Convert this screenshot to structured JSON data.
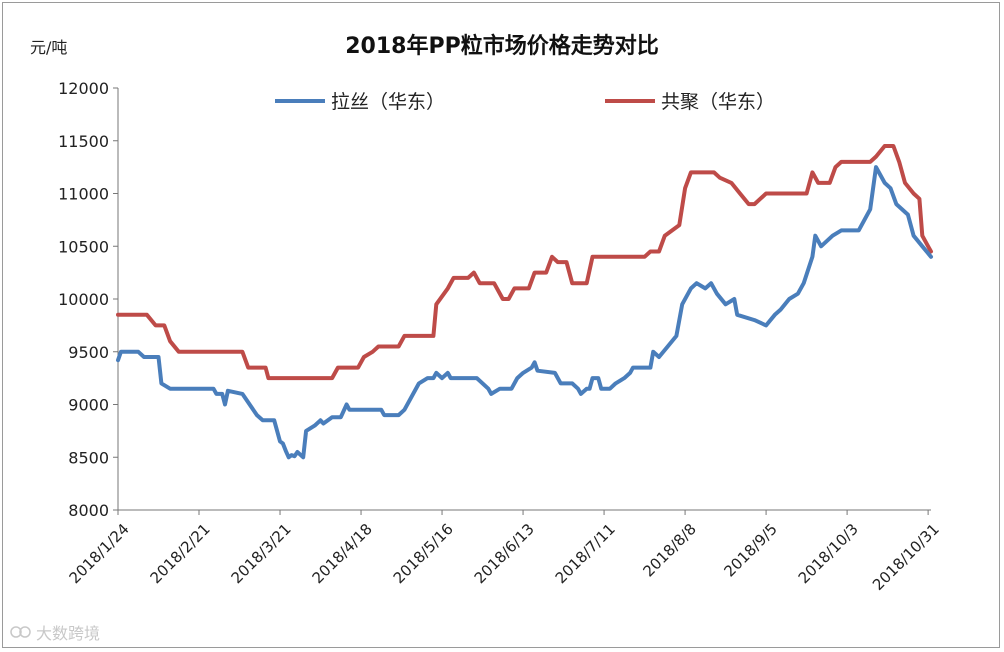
{
  "chart_data": {
    "type": "line",
    "title": "2018年PP粒市场价格走势对比",
    "ylabel": "元/吨",
    "ylim": [
      8000,
      12000
    ],
    "yticks": [
      8000,
      8500,
      9000,
      9500,
      10000,
      10500,
      11000,
      11500,
      12000
    ],
    "xlim": [
      "2018-01-24",
      "2018-11-01"
    ],
    "xticks": [
      "2018/1/24",
      "2018/2/21",
      "2018/3/21",
      "2018/4/18",
      "2018/5/16",
      "2018/6/13",
      "2018/7/11",
      "2018/8/8",
      "2018/9/5",
      "2018/10/3",
      "2018/10/31"
    ],
    "grid": false,
    "legend_position": "top",
    "series": [
      {
        "name": "拉丝（华东）",
        "color": "#4a7ebb",
        "points": [
          [
            "2018-01-24",
            9420
          ],
          [
            "2018-01-25",
            9500
          ],
          [
            "2018-01-31",
            9500
          ],
          [
            "2018-02-02",
            9450
          ],
          [
            "2018-02-07",
            9450
          ],
          [
            "2018-02-08",
            9200
          ],
          [
            "2018-02-11",
            9150
          ],
          [
            "2018-02-26",
            9150
          ],
          [
            "2018-02-27",
            9100
          ],
          [
            "2018-03-01",
            9100
          ],
          [
            "2018-03-02",
            9000
          ],
          [
            "2018-03-03",
            9130
          ],
          [
            "2018-03-08",
            9100
          ],
          [
            "2018-03-13",
            8900
          ],
          [
            "2018-03-15",
            8850
          ],
          [
            "2018-03-19",
            8850
          ],
          [
            "2018-03-21",
            8650
          ],
          [
            "2018-03-22",
            8630
          ],
          [
            "2018-03-23",
            8560
          ],
          [
            "2018-03-24",
            8500
          ],
          [
            "2018-03-25",
            8520
          ],
          [
            "2018-03-26",
            8510
          ],
          [
            "2018-03-27",
            8550
          ],
          [
            "2018-03-29",
            8500
          ],
          [
            "2018-03-30",
            8750
          ],
          [
            "2018-04-02",
            8800
          ],
          [
            "2018-04-04",
            8850
          ],
          [
            "2018-04-05",
            8820
          ],
          [
            "2018-04-08",
            8880
          ],
          [
            "2018-04-11",
            8880
          ],
          [
            "2018-04-13",
            9000
          ],
          [
            "2018-04-14",
            8950
          ],
          [
            "2018-04-25",
            8950
          ],
          [
            "2018-04-26",
            8900
          ],
          [
            "2018-05-01",
            8900
          ],
          [
            "2018-05-03",
            8950
          ],
          [
            "2018-05-08",
            9200
          ],
          [
            "2018-05-11",
            9250
          ],
          [
            "2018-05-13",
            9250
          ],
          [
            "2018-05-14",
            9300
          ],
          [
            "2018-05-16",
            9250
          ],
          [
            "2018-05-18",
            9300
          ],
          [
            "2018-05-19",
            9250
          ],
          [
            "2018-05-28",
            9250
          ],
          [
            "2018-06-01",
            9150
          ],
          [
            "2018-06-02",
            9100
          ],
          [
            "2018-06-05",
            9150
          ],
          [
            "2018-06-09",
            9150
          ],
          [
            "2018-06-11",
            9250
          ],
          [
            "2018-06-13",
            9300
          ],
          [
            "2018-06-16",
            9350
          ],
          [
            "2018-06-17",
            9400
          ],
          [
            "2018-06-18",
            9320
          ],
          [
            "2018-06-24",
            9300
          ],
          [
            "2018-06-26",
            9200
          ],
          [
            "2018-06-30",
            9200
          ],
          [
            "2018-07-02",
            9150
          ],
          [
            "2018-07-03",
            9100
          ],
          [
            "2018-07-05",
            9150
          ],
          [
            "2018-07-06",
            9150
          ],
          [
            "2018-07-07",
            9250
          ],
          [
            "2018-07-09",
            9250
          ],
          [
            "2018-07-10",
            9150
          ],
          [
            "2018-07-13",
            9150
          ],
          [
            "2018-07-15",
            9200
          ],
          [
            "2018-07-18",
            9250
          ],
          [
            "2018-07-20",
            9300
          ],
          [
            "2018-07-21",
            9350
          ],
          [
            "2018-07-27",
            9350
          ],
          [
            "2018-07-28",
            9500
          ],
          [
            "2018-07-30",
            9450
          ],
          [
            "2018-08-02",
            9550
          ],
          [
            "2018-08-05",
            9650
          ],
          [
            "2018-08-07",
            9950
          ],
          [
            "2018-08-10",
            10100
          ],
          [
            "2018-08-12",
            10150
          ],
          [
            "2018-08-15",
            10100
          ],
          [
            "2018-08-17",
            10150
          ],
          [
            "2018-08-19",
            10050
          ],
          [
            "2018-08-22",
            9950
          ],
          [
            "2018-08-25",
            10000
          ],
          [
            "2018-08-26",
            9850
          ],
          [
            "2018-09-01",
            9800
          ],
          [
            "2018-09-05",
            9750
          ],
          [
            "2018-09-08",
            9850
          ],
          [
            "2018-09-10",
            9900
          ],
          [
            "2018-09-13",
            10000
          ],
          [
            "2018-09-16",
            10050
          ],
          [
            "2018-09-18",
            10150
          ],
          [
            "2018-09-21",
            10400
          ],
          [
            "2018-09-22",
            10600
          ],
          [
            "2018-09-24",
            10500
          ],
          [
            "2018-09-28",
            10600
          ],
          [
            "2018-10-01",
            10650
          ],
          [
            "2018-10-07",
            10650
          ],
          [
            "2018-10-11",
            10850
          ],
          [
            "2018-10-13",
            11250
          ],
          [
            "2018-10-16",
            11100
          ],
          [
            "2018-10-18",
            11050
          ],
          [
            "2018-10-20",
            10900
          ],
          [
            "2018-10-24",
            10800
          ],
          [
            "2018-10-26",
            10600
          ],
          [
            "2018-10-29",
            10500
          ],
          [
            "2018-11-01",
            10400
          ]
        ]
      },
      {
        "name": "共聚（华东）",
        "color": "#be4b48",
        "points": [
          [
            "2018-01-24",
            9850
          ],
          [
            "2018-02-03",
            9850
          ],
          [
            "2018-02-06",
            9750
          ],
          [
            "2018-02-09",
            9750
          ],
          [
            "2018-02-11",
            9600
          ],
          [
            "2018-02-14",
            9500
          ],
          [
            "2018-03-08",
            9500
          ],
          [
            "2018-03-10",
            9350
          ],
          [
            "2018-03-16",
            9350
          ],
          [
            "2018-03-17",
            9250
          ],
          [
            "2018-04-08",
            9250
          ],
          [
            "2018-04-10",
            9350
          ],
          [
            "2018-04-17",
            9350
          ],
          [
            "2018-04-19",
            9450
          ],
          [
            "2018-04-22",
            9500
          ],
          [
            "2018-04-24",
            9550
          ],
          [
            "2018-05-01",
            9550
          ],
          [
            "2018-05-03",
            9650
          ],
          [
            "2018-05-13",
            9650
          ],
          [
            "2018-05-14",
            9950
          ],
          [
            "2018-05-18",
            10100
          ],
          [
            "2018-05-20",
            10200
          ],
          [
            "2018-05-25",
            10200
          ],
          [
            "2018-05-27",
            10250
          ],
          [
            "2018-05-29",
            10150
          ],
          [
            "2018-06-03",
            10150
          ],
          [
            "2018-06-06",
            10000
          ],
          [
            "2018-06-08",
            10000
          ],
          [
            "2018-06-10",
            10100
          ],
          [
            "2018-06-15",
            10100
          ],
          [
            "2018-06-17",
            10250
          ],
          [
            "2018-06-21",
            10250
          ],
          [
            "2018-06-23",
            10400
          ],
          [
            "2018-06-25",
            10350
          ],
          [
            "2018-06-28",
            10350
          ],
          [
            "2018-06-30",
            10150
          ],
          [
            "2018-07-05",
            10150
          ],
          [
            "2018-07-07",
            10400
          ],
          [
            "2018-07-25",
            10400
          ],
          [
            "2018-07-27",
            10450
          ],
          [
            "2018-07-30",
            10450
          ],
          [
            "2018-08-01",
            10600
          ],
          [
            "2018-08-06",
            10700
          ],
          [
            "2018-08-08",
            11050
          ],
          [
            "2018-08-10",
            11200
          ],
          [
            "2018-08-18",
            11200
          ],
          [
            "2018-08-20",
            11150
          ],
          [
            "2018-08-24",
            11100
          ],
          [
            "2018-08-27",
            11000
          ],
          [
            "2018-08-30",
            10900
          ],
          [
            "2018-09-01",
            10900
          ],
          [
            "2018-09-05",
            11000
          ],
          [
            "2018-09-19",
            11000
          ],
          [
            "2018-09-21",
            11200
          ],
          [
            "2018-09-23",
            11100
          ],
          [
            "2018-09-27",
            11100
          ],
          [
            "2018-09-29",
            11250
          ],
          [
            "2018-10-01",
            11300
          ],
          [
            "2018-10-11",
            11300
          ],
          [
            "2018-10-13",
            11350
          ],
          [
            "2018-10-16",
            11450
          ],
          [
            "2018-10-19",
            11450
          ],
          [
            "2018-10-21",
            11300
          ],
          [
            "2018-10-23",
            11100
          ],
          [
            "2018-10-26",
            11000
          ],
          [
            "2018-10-28",
            10950
          ],
          [
            "2018-10-29",
            10600
          ],
          [
            "2018-10-31",
            10500
          ],
          [
            "2018-11-01",
            10450
          ]
        ]
      }
    ]
  },
  "watermark": {
    "text": "大数跨境",
    "color": "#c8c8c8"
  }
}
